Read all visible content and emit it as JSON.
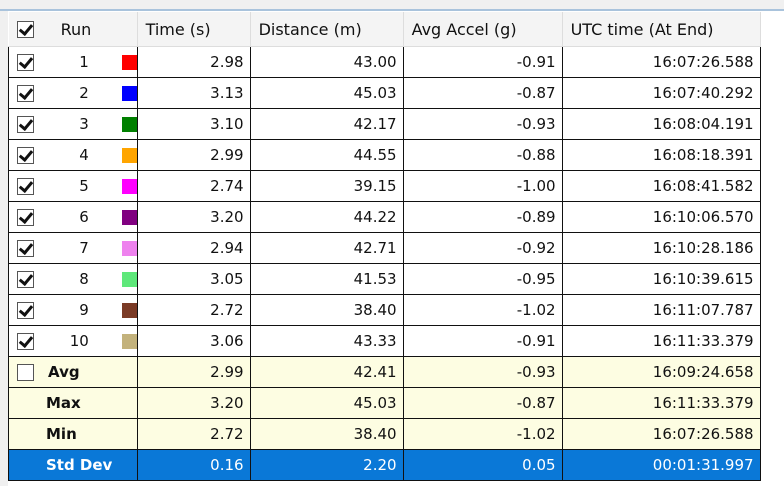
{
  "header": {
    "run": "Run",
    "time": "Time (s)",
    "distance": "Distance (m)",
    "accel": "Avg Accel (g)",
    "utc": "UTC time (At End)",
    "all_checked": true
  },
  "runs": [
    {
      "run": "1",
      "color": "#ff0000",
      "time": "2.98",
      "distance": "43.00",
      "accel": "-0.91",
      "utc": "16:07:26.588",
      "checked": true
    },
    {
      "run": "2",
      "color": "#0000ff",
      "time": "3.13",
      "distance": "45.03",
      "accel": "-0.87",
      "utc": "16:07:40.292",
      "checked": true
    },
    {
      "run": "3",
      "color": "#008000",
      "time": "3.10",
      "distance": "42.17",
      "accel": "-0.93",
      "utc": "16:08:04.191",
      "checked": true
    },
    {
      "run": "4",
      "color": "#ffa500",
      "time": "2.99",
      "distance": "44.55",
      "accel": "-0.88",
      "utc": "16:08:18.391",
      "checked": true
    },
    {
      "run": "5",
      "color": "#ff00ff",
      "time": "2.74",
      "distance": "39.15",
      "accel": "-1.00",
      "utc": "16:08:41.582",
      "checked": true
    },
    {
      "run": "6",
      "color": "#800080",
      "time": "3.20",
      "distance": "44.22",
      "accel": "-0.89",
      "utc": "16:10:06.570",
      "checked": true
    },
    {
      "run": "7",
      "color": "#ee82ee",
      "time": "2.94",
      "distance": "42.71",
      "accel": "-0.92",
      "utc": "16:10:28.186",
      "checked": true
    },
    {
      "run": "8",
      "color": "#5ee87a",
      "time": "3.05",
      "distance": "41.53",
      "accel": "-0.95",
      "utc": "16:10:39.615",
      "checked": true
    },
    {
      "run": "9",
      "color": "#7b3b26",
      "time": "2.72",
      "distance": "38.40",
      "accel": "-1.02",
      "utc": "16:11:07.787",
      "checked": true
    },
    {
      "run": "10",
      "color": "#c3b27c",
      "time": "3.06",
      "distance": "43.33",
      "accel": "-0.91",
      "utc": "16:11:33.379",
      "checked": true
    }
  ],
  "stats": [
    {
      "label": "Avg",
      "time": "2.99",
      "distance": "42.41",
      "accel": "-0.93",
      "utc": "16:09:24.658",
      "has_checkbox": true,
      "checked": false
    },
    {
      "label": "Max",
      "time": "3.20",
      "distance": "45.03",
      "accel": "-0.87",
      "utc": "16:11:33.379"
    },
    {
      "label": "Min",
      "time": "2.72",
      "distance": "38.40",
      "accel": "-1.02",
      "utc": "16:07:26.588"
    },
    {
      "label": "Std Dev",
      "time": "0.16",
      "distance": "2.20",
      "accel": "0.05",
      "utc": "00:01:31.997",
      "selected": true
    }
  ]
}
